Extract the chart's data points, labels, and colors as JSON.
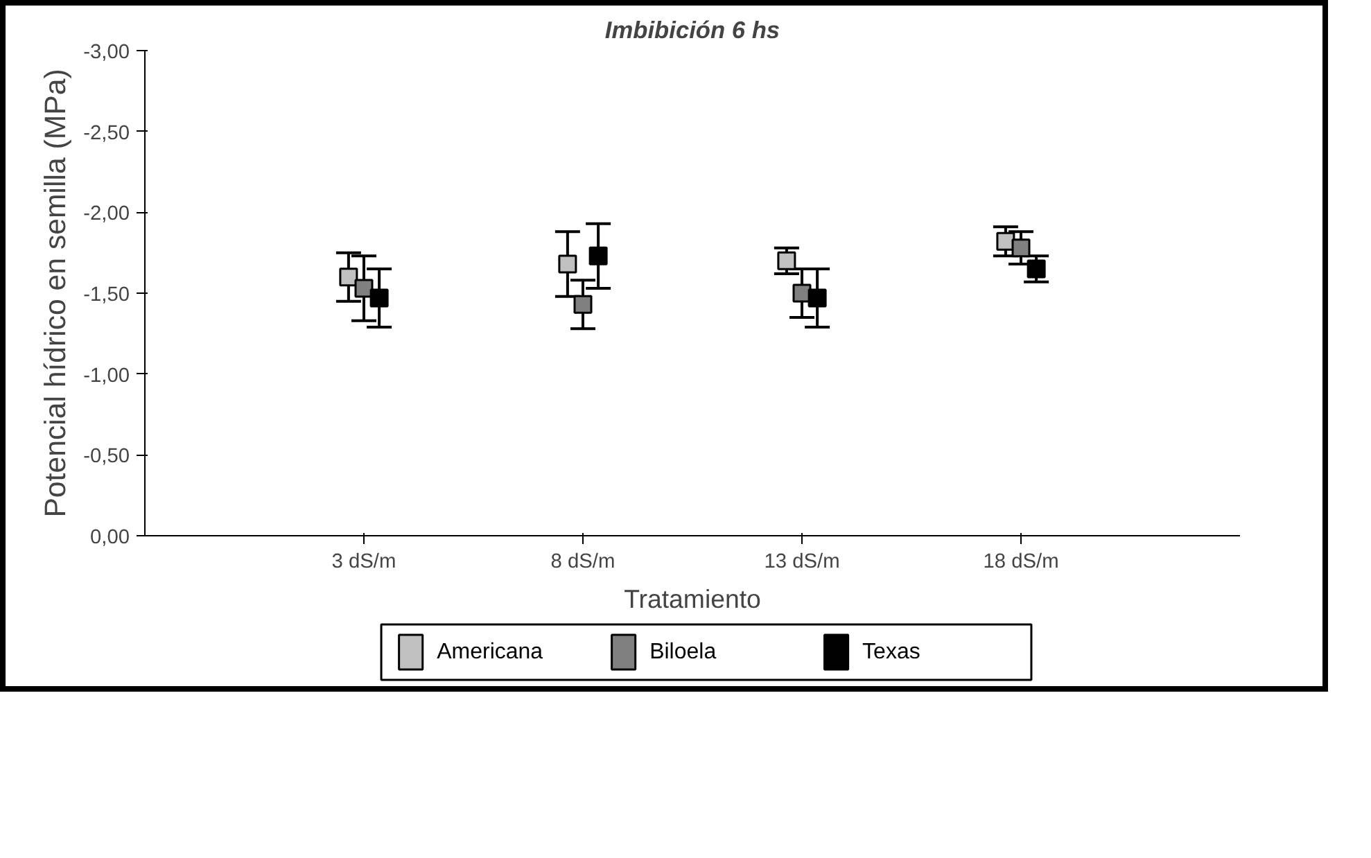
{
  "chart_data": {
    "type": "scatter",
    "title": "Imbibición 6 hs",
    "xlabel": "Tratamiento",
    "ylabel": "Potencial hídrico en semilla (MPa)",
    "categories": [
      "3 dS/m",
      "8 dS/m",
      "13 dS/m",
      "18 dS/m"
    ],
    "ylim": [
      0,
      -3
    ],
    "yticks": [
      {
        "value": 0,
        "label": "0,00"
      },
      {
        "value": -0.5,
        "label": "-0,50"
      },
      {
        "value": -1,
        "label": "-1,00"
      },
      {
        "value": -1.5,
        "label": "-1,50"
      },
      {
        "value": -2,
        "label": "-2,00"
      },
      {
        "value": -2.5,
        "label": "-2,50"
      },
      {
        "value": -3,
        "label": "-3,00"
      }
    ],
    "series": [
      {
        "name": "Americana",
        "color": "#c0c0c0",
        "values": [
          -1.6,
          -1.68,
          -1.7,
          -1.82
        ],
        "errors": [
          0.15,
          0.2,
          0.08,
          0.09
        ]
      },
      {
        "name": "Biloela",
        "color": "#808080",
        "values": [
          -1.53,
          -1.43,
          -1.5,
          -1.78
        ],
        "errors": [
          0.2,
          0.15,
          0.15,
          0.1
        ]
      },
      {
        "name": "Texas",
        "color": "#000000",
        "values": [
          -1.47,
          -1.73,
          -1.47,
          -1.65
        ],
        "errors": [
          0.18,
          0.2,
          0.18,
          0.08
        ]
      }
    ],
    "marker": "square",
    "grid": false,
    "legend": "bottom"
  }
}
